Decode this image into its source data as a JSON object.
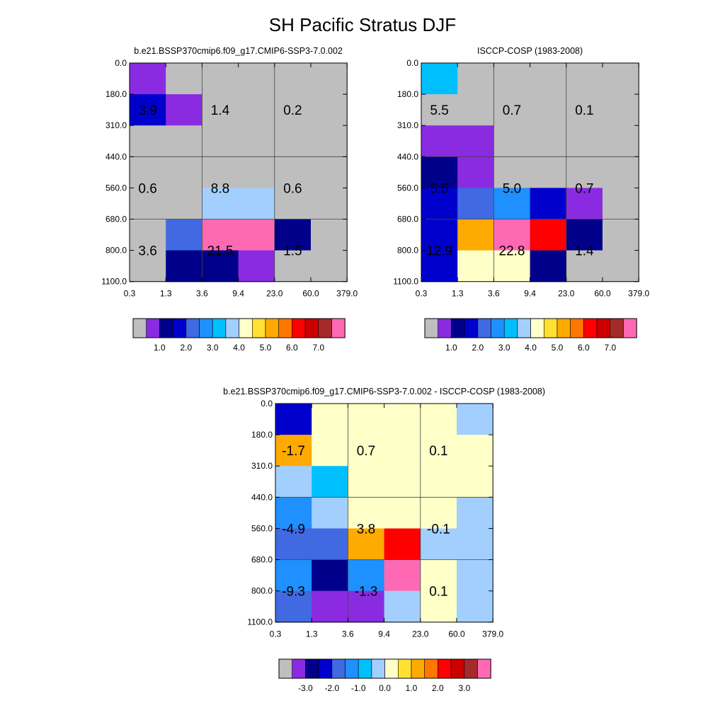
{
  "figure_title": "SH Pacific Stratus DJF",
  "palette": {
    "grey": "#bebebe",
    "purple": "#8a2be2",
    "navy": "#00008b",
    "blue": "#0000cd",
    "royal": "#4169e1",
    "dodger": "#1e90ff",
    "sky": "#00bfff",
    "lightsky": "#a3cfff",
    "cream": "#ffffc8",
    "gold": "#ffe033",
    "amber": "#ffaa00",
    "orange": "#ff7700",
    "red": "#ff0000",
    "darkred": "#cc0000",
    "brown": "#a52a2a",
    "pink": "#ff69b4"
  },
  "colorbar_order": [
    "grey",
    "purple",
    "navy",
    "blue",
    "royal",
    "dodger",
    "sky",
    "lightsky",
    "cream",
    "gold",
    "amber",
    "orange",
    "red",
    "darkred",
    "brown",
    "pink"
  ],
  "chart_data": [
    {
      "type": "heatmap",
      "title": "b.e21.BSSP370cmip6.f09_g17.CMIP6-SSP3-7.0.002",
      "x_tick_labels": [
        "0.3",
        "1.3",
        "3.6",
        "9.4",
        "23.0",
        "60.0",
        "379.0"
      ],
      "y_tick_labels": [
        "0.0",
        "180.0",
        "310.0",
        "440.0",
        "560.0",
        "680.0",
        "800.0",
        "1100.0"
      ],
      "cells": [
        [
          "purple",
          "grey",
          "grey",
          "grey",
          "grey",
          "grey"
        ],
        [
          "blue",
          "purple",
          "grey",
          "grey",
          "grey",
          "grey"
        ],
        [
          "grey",
          "grey",
          "grey",
          "grey",
          "grey",
          "grey"
        ],
        [
          "grey",
          "grey",
          "grey",
          "grey",
          "grey",
          "grey"
        ],
        [
          "grey",
          "grey",
          "lightsky",
          "lightsky",
          "grey",
          "grey"
        ],
        [
          "grey",
          "royal",
          "pink",
          "pink",
          "navy",
          "grey"
        ],
        [
          "grey",
          "navy",
          "navy",
          "purple",
          "grey",
          "grey"
        ]
      ],
      "annotations": [
        {
          "text": "3.9",
          "col": 0.5,
          "row": 1.5
        },
        {
          "text": "1.4",
          "col": 2.5,
          "row": 1.5
        },
        {
          "text": "0.2",
          "col": 4.5,
          "row": 1.5
        },
        {
          "text": "0.6",
          "col": 0.5,
          "row": 4.0
        },
        {
          "text": "8.8",
          "col": 2.5,
          "row": 4.0
        },
        {
          "text": "0.6",
          "col": 4.5,
          "row": 4.0
        },
        {
          "text": "3.6",
          "col": 0.5,
          "row": 6.0
        },
        {
          "text": "21.5",
          "col": 2.5,
          "row": 6.0
        },
        {
          "text": "1.5",
          "col": 4.5,
          "row": 6.0
        }
      ],
      "colorbar_labels": [
        "1.0",
        "2.0",
        "3.0",
        "4.0",
        "5.0",
        "6.0",
        "7.0"
      ]
    },
    {
      "type": "heatmap",
      "title": "ISCCP-COSP (1983-2008)",
      "x_tick_labels": [
        "0.3",
        "1.3",
        "3.6",
        "9.4",
        "23.0",
        "60.0",
        "379.0"
      ],
      "y_tick_labels": [
        "0.0",
        "180.0",
        "310.0",
        "440.0",
        "560.0",
        "680.0",
        "800.0",
        "1100.0"
      ],
      "cells": [
        [
          "sky",
          "grey",
          "grey",
          "grey",
          "grey",
          "grey"
        ],
        [
          "grey",
          "grey",
          "grey",
          "grey",
          "grey",
          "grey"
        ],
        [
          "purple",
          "purple",
          "grey",
          "grey",
          "grey",
          "grey"
        ],
        [
          "navy",
          "purple",
          "grey",
          "grey",
          "grey",
          "grey"
        ],
        [
          "blue",
          "royal",
          "dodger",
          "blue",
          "purple",
          "grey"
        ],
        [
          "blue",
          "amber",
          "pink",
          "red",
          "navy",
          "grey"
        ],
        [
          "blue",
          "cream",
          "cream",
          "navy",
          "grey",
          "grey"
        ]
      ],
      "annotations": [
        {
          "text": "5.5",
          "col": 0.5,
          "row": 1.5
        },
        {
          "text": "0.7",
          "col": 2.5,
          "row": 1.5
        },
        {
          "text": "0.1",
          "col": 4.5,
          "row": 1.5
        },
        {
          "text": "5.5",
          "col": 0.5,
          "row": 4.0
        },
        {
          "text": "5.0",
          "col": 2.5,
          "row": 4.0
        },
        {
          "text": "0.7",
          "col": 4.5,
          "row": 4.0
        },
        {
          "text": "12.9",
          "col": 0.5,
          "row": 6.0
        },
        {
          "text": "22.8",
          "col": 2.5,
          "row": 6.0
        },
        {
          "text": "1.4",
          "col": 4.5,
          "row": 6.0
        }
      ],
      "colorbar_labels": [
        "1.0",
        "2.0",
        "3.0",
        "4.0",
        "5.0",
        "6.0",
        "7.0"
      ]
    },
    {
      "type": "heatmap",
      "title": "b.e21.BSSP370cmip6.f09_g17.CMIP6-SSP3-7.0.002 - ISCCP-COSP (1983-2008)",
      "x_tick_labels": [
        "0.3",
        "1.3",
        "3.6",
        "9.4",
        "23.0",
        "60.0",
        "379.0"
      ],
      "y_tick_labels": [
        "0.0",
        "180.0",
        "310.0",
        "440.0",
        "560.0",
        "680.0",
        "800.0",
        "1100.0"
      ],
      "cells": [
        [
          "blue",
          "cream",
          "cream",
          "cream",
          "cream",
          "lightsky"
        ],
        [
          "amber",
          "cream",
          "cream",
          "cream",
          "cream",
          "cream"
        ],
        [
          "lightsky",
          "sky",
          "cream",
          "cream",
          "cream",
          "cream"
        ],
        [
          "dodger",
          "lightsky",
          "cream",
          "cream",
          "cream",
          "lightsky"
        ],
        [
          "royal",
          "royal",
          "amber",
          "red",
          "lightsky",
          "lightsky"
        ],
        [
          "dodger",
          "navy",
          "dodger",
          "pink",
          "cream",
          "lightsky"
        ],
        [
          "royal",
          "purple",
          "purple",
          "lightsky",
          "cream",
          "lightsky"
        ]
      ],
      "annotations": [
        {
          "text": "-1.7",
          "col": 0.5,
          "row": 1.5
        },
        {
          "text": "0.7",
          "col": 2.5,
          "row": 1.5
        },
        {
          "text": "0.1",
          "col": 4.5,
          "row": 1.5
        },
        {
          "text": "-4.9",
          "col": 0.5,
          "row": 4.0
        },
        {
          "text": "3.8",
          "col": 2.5,
          "row": 4.0
        },
        {
          "text": "-0.1",
          "col": 4.5,
          "row": 4.0
        },
        {
          "text": "-9.3",
          "col": 0.5,
          "row": 6.0
        },
        {
          "text": "-1.3",
          "col": 2.5,
          "row": 6.0
        },
        {
          "text": "0.1",
          "col": 4.5,
          "row": 6.0
        }
      ],
      "colorbar_labels": [
        "-3.0",
        "-2.0",
        "-1.0",
        "0.0",
        "1.0",
        "2.0",
        "3.0"
      ]
    }
  ]
}
